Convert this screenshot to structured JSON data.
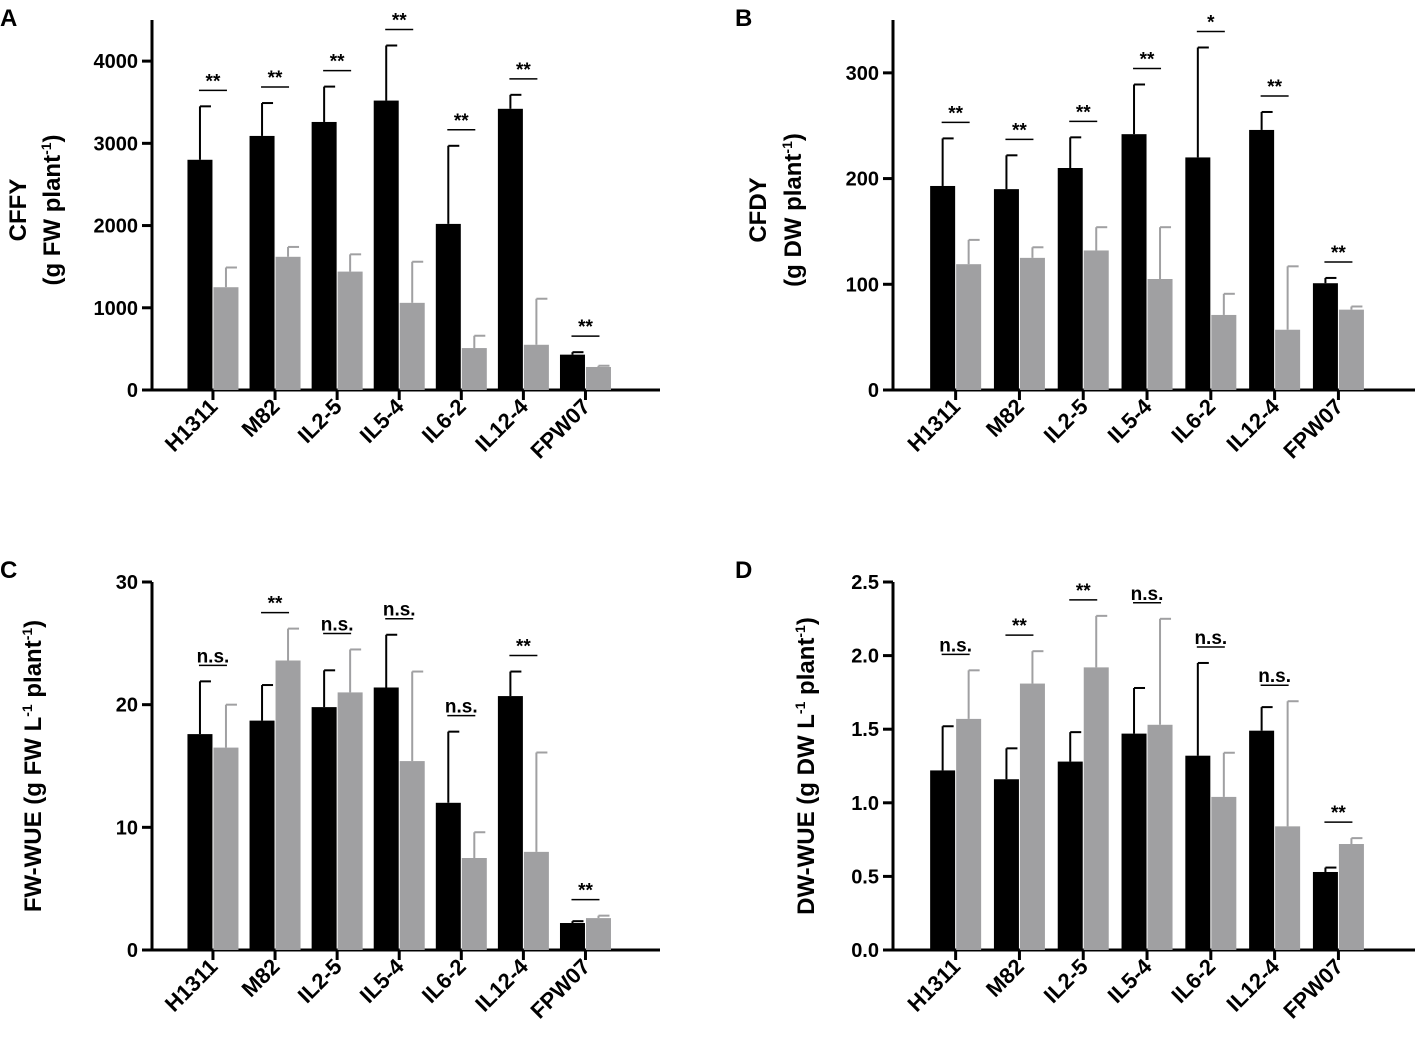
{
  "colors": {
    "control": "#000000",
    "treatment": "#a0a0a2",
    "axis": "#000000"
  },
  "chart_data": [
    {
      "panel": "A",
      "type": "bar",
      "ylabel": {
        "line1": "CFFY",
        "line2": "(g FW plant",
        "sup": "-1",
        "close": ")"
      },
      "ylim": [
        0,
        4500
      ],
      "yticks": [
        0,
        1000,
        2000,
        3000,
        4000
      ],
      "categories": [
        "H1311",
        "M82",
        "IL2-5",
        "IL5-4",
        "IL6-2",
        "IL12-4",
        "FPW07"
      ],
      "series": [
        {
          "name": "black",
          "values": [
            2800,
            3090,
            3260,
            3520,
            2020,
            3420,
            430
          ],
          "errors": [
            650,
            400,
            430,
            670,
            950,
            170,
            30
          ]
        },
        {
          "name": "gray",
          "values": [
            1250,
            1620,
            1440,
            1060,
            510,
            550,
            280
          ],
          "errors": [
            240,
            120,
            210,
            500,
            150,
            560,
            15
          ]
        }
      ],
      "significance": [
        "**",
        "**",
        "**",
        "**",
        "**",
        "**",
        "**"
      ],
      "rotate_labels": true
    },
    {
      "panel": "B",
      "type": "bar",
      "ylabel": {
        "line1": "CFDY",
        "line2": "(g DW plant",
        "sup": "-1",
        "close": ")"
      },
      "ylim": [
        0,
        350
      ],
      "yticks": [
        0,
        100,
        200,
        300
      ],
      "categories": [
        "H1311",
        "M82",
        "IL2-5",
        "IL5-4",
        "IL6-2",
        "IL12-4",
        "FPW07"
      ],
      "series": [
        {
          "name": "black",
          "values": [
            193,
            190,
            210,
            242,
            220,
            246,
            101
          ],
          "errors": [
            45,
            32,
            29,
            47,
            104,
            17,
            5
          ]
        },
        {
          "name": "gray",
          "values": [
            119,
            125,
            132,
            105,
            71,
            57,
            76
          ],
          "errors": [
            23,
            10,
            22,
            49,
            20,
            60,
            3
          ]
        }
      ],
      "significance": [
        "**",
        "**",
        "**",
        "**",
        "*",
        "**",
        "**"
      ],
      "rotate_labels": true
    },
    {
      "panel": "C",
      "type": "bar",
      "ylabel": {
        "text": "FW-WUE (g FW L",
        "sup1": "-1",
        "mid": " plant",
        "sup2": "-1",
        "close": ")"
      },
      "ylim": [
        0,
        30
      ],
      "yticks": [
        0,
        10,
        20,
        30
      ],
      "categories": [
        "H1311",
        "M82",
        "IL2-5",
        "IL5-4",
        "IL6-2",
        "IL12-4",
        "FPW07"
      ],
      "series": [
        {
          "name": "black",
          "values": [
            17.6,
            18.7,
            19.8,
            21.4,
            12.0,
            20.7,
            2.2
          ],
          "errors": [
            4.3,
            2.9,
            3.0,
            4.3,
            5.8,
            2.0,
            0.15
          ]
        },
        {
          "name": "gray",
          "values": [
            16.5,
            23.6,
            21.0,
            15.4,
            7.5,
            8.0,
            2.6
          ],
          "errors": [
            3.5,
            2.6,
            3.5,
            7.3,
            2.1,
            8.1,
            0.2
          ]
        }
      ],
      "significance": [
        "n.s.",
        "**",
        "n.s.",
        "n.s.",
        "n.s.",
        "**",
        "**"
      ],
      "rotate_labels": true
    },
    {
      "panel": "D",
      "type": "bar",
      "ylabel": {
        "text": "DW-WUE (g DW L",
        "sup1": "-1",
        "mid": " plant",
        "sup2": "-1",
        "close": ")"
      },
      "ylim": [
        0,
        2.5
      ],
      "yticks": [
        "0.0",
        "0.5",
        "1.0",
        "1.5",
        "2.0",
        "2.5"
      ],
      "categories": [
        "H1311",
        "M82",
        "IL2-5",
        "IL5-4",
        "IL6-2",
        "IL12-4",
        "FPW07"
      ],
      "series": [
        {
          "name": "black",
          "values": [
            1.22,
            1.16,
            1.28,
            1.47,
            1.32,
            1.49,
            0.53
          ],
          "errors": [
            0.3,
            0.21,
            0.2,
            0.31,
            0.63,
            0.16,
            0.03
          ]
        },
        {
          "name": "gray",
          "values": [
            1.57,
            1.81,
            1.92,
            1.53,
            1.04,
            0.84,
            0.72
          ],
          "errors": [
            0.33,
            0.22,
            0.35,
            0.72,
            0.3,
            0.85,
            0.04
          ]
        }
      ],
      "significance": [
        "n.s.",
        "**",
        "**",
        "n.s.",
        "n.s.",
        "n.s.",
        "**"
      ],
      "rotate_labels": true
    }
  ]
}
